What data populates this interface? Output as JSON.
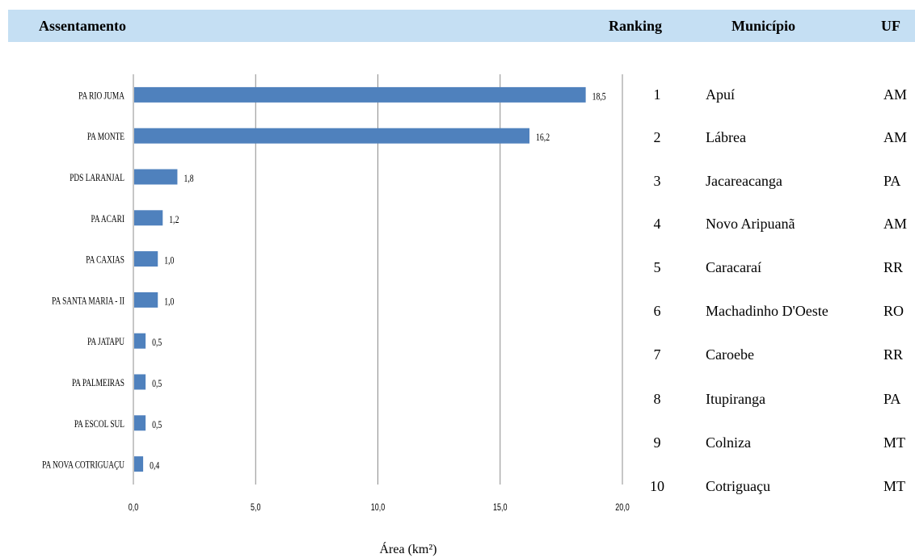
{
  "header": {
    "assentamento": "Assentamento",
    "ranking": "Ranking",
    "municipio": "Município",
    "uf": "UF"
  },
  "chart_data": {
    "type": "bar",
    "orientation": "horizontal",
    "categories": [
      "PA RIO JUMA",
      "PA MONTE",
      "PDS LARANJAL",
      "PA ACARI",
      "PA CAXIAS",
      "PA SANTA MARIA - II",
      "PA JATAPU",
      "PA PALMEIRAS",
      "PA ESCOL SUL",
      "PA NOVA COTRIGUAÇU"
    ],
    "values": [
      18.5,
      16.2,
      1.8,
      1.2,
      1.0,
      1.0,
      0.5,
      0.5,
      0.5,
      0.4
    ],
    "value_labels": [
      "18,5",
      "16,2",
      "1,8",
      "1,2",
      "1,0",
      "1,0",
      "0,5",
      "0,5",
      "0,5",
      "0,4"
    ],
    "xlabel": "Área (km²)",
    "xlim": [
      0,
      20
    ],
    "xticks": [
      0,
      5,
      10,
      15,
      20
    ],
    "xtick_labels": [
      "0,0",
      "5,0",
      "10,0",
      "15,0",
      "20,0"
    ],
    "grid": "vertical",
    "bar_color": "#4f81bd"
  },
  "table": {
    "rows": [
      {
        "ranking": "1",
        "municipio": "Apuí",
        "uf": "AM"
      },
      {
        "ranking": "2",
        "municipio": "Lábrea",
        "uf": "AM"
      },
      {
        "ranking": "3",
        "municipio": "Jacareacanga",
        "uf": "PA"
      },
      {
        "ranking": "4",
        "municipio": "Novo Aripuanã",
        "uf": "AM"
      },
      {
        "ranking": "5",
        "municipio": "Caracaraí",
        "uf": "RR"
      },
      {
        "ranking": "6",
        "municipio": "Machadinho D'Oeste",
        "uf": "RO"
      },
      {
        "ranking": "7",
        "municipio": "Caroebe",
        "uf": "RR"
      },
      {
        "ranking": "8",
        "municipio": "Itupiranga",
        "uf": "PA"
      },
      {
        "ranking": "9",
        "municipio": "Colniza",
        "uf": "MT"
      },
      {
        "ranking": "10",
        "municipio": "Cotriguaçu",
        "uf": "MT"
      }
    ]
  }
}
